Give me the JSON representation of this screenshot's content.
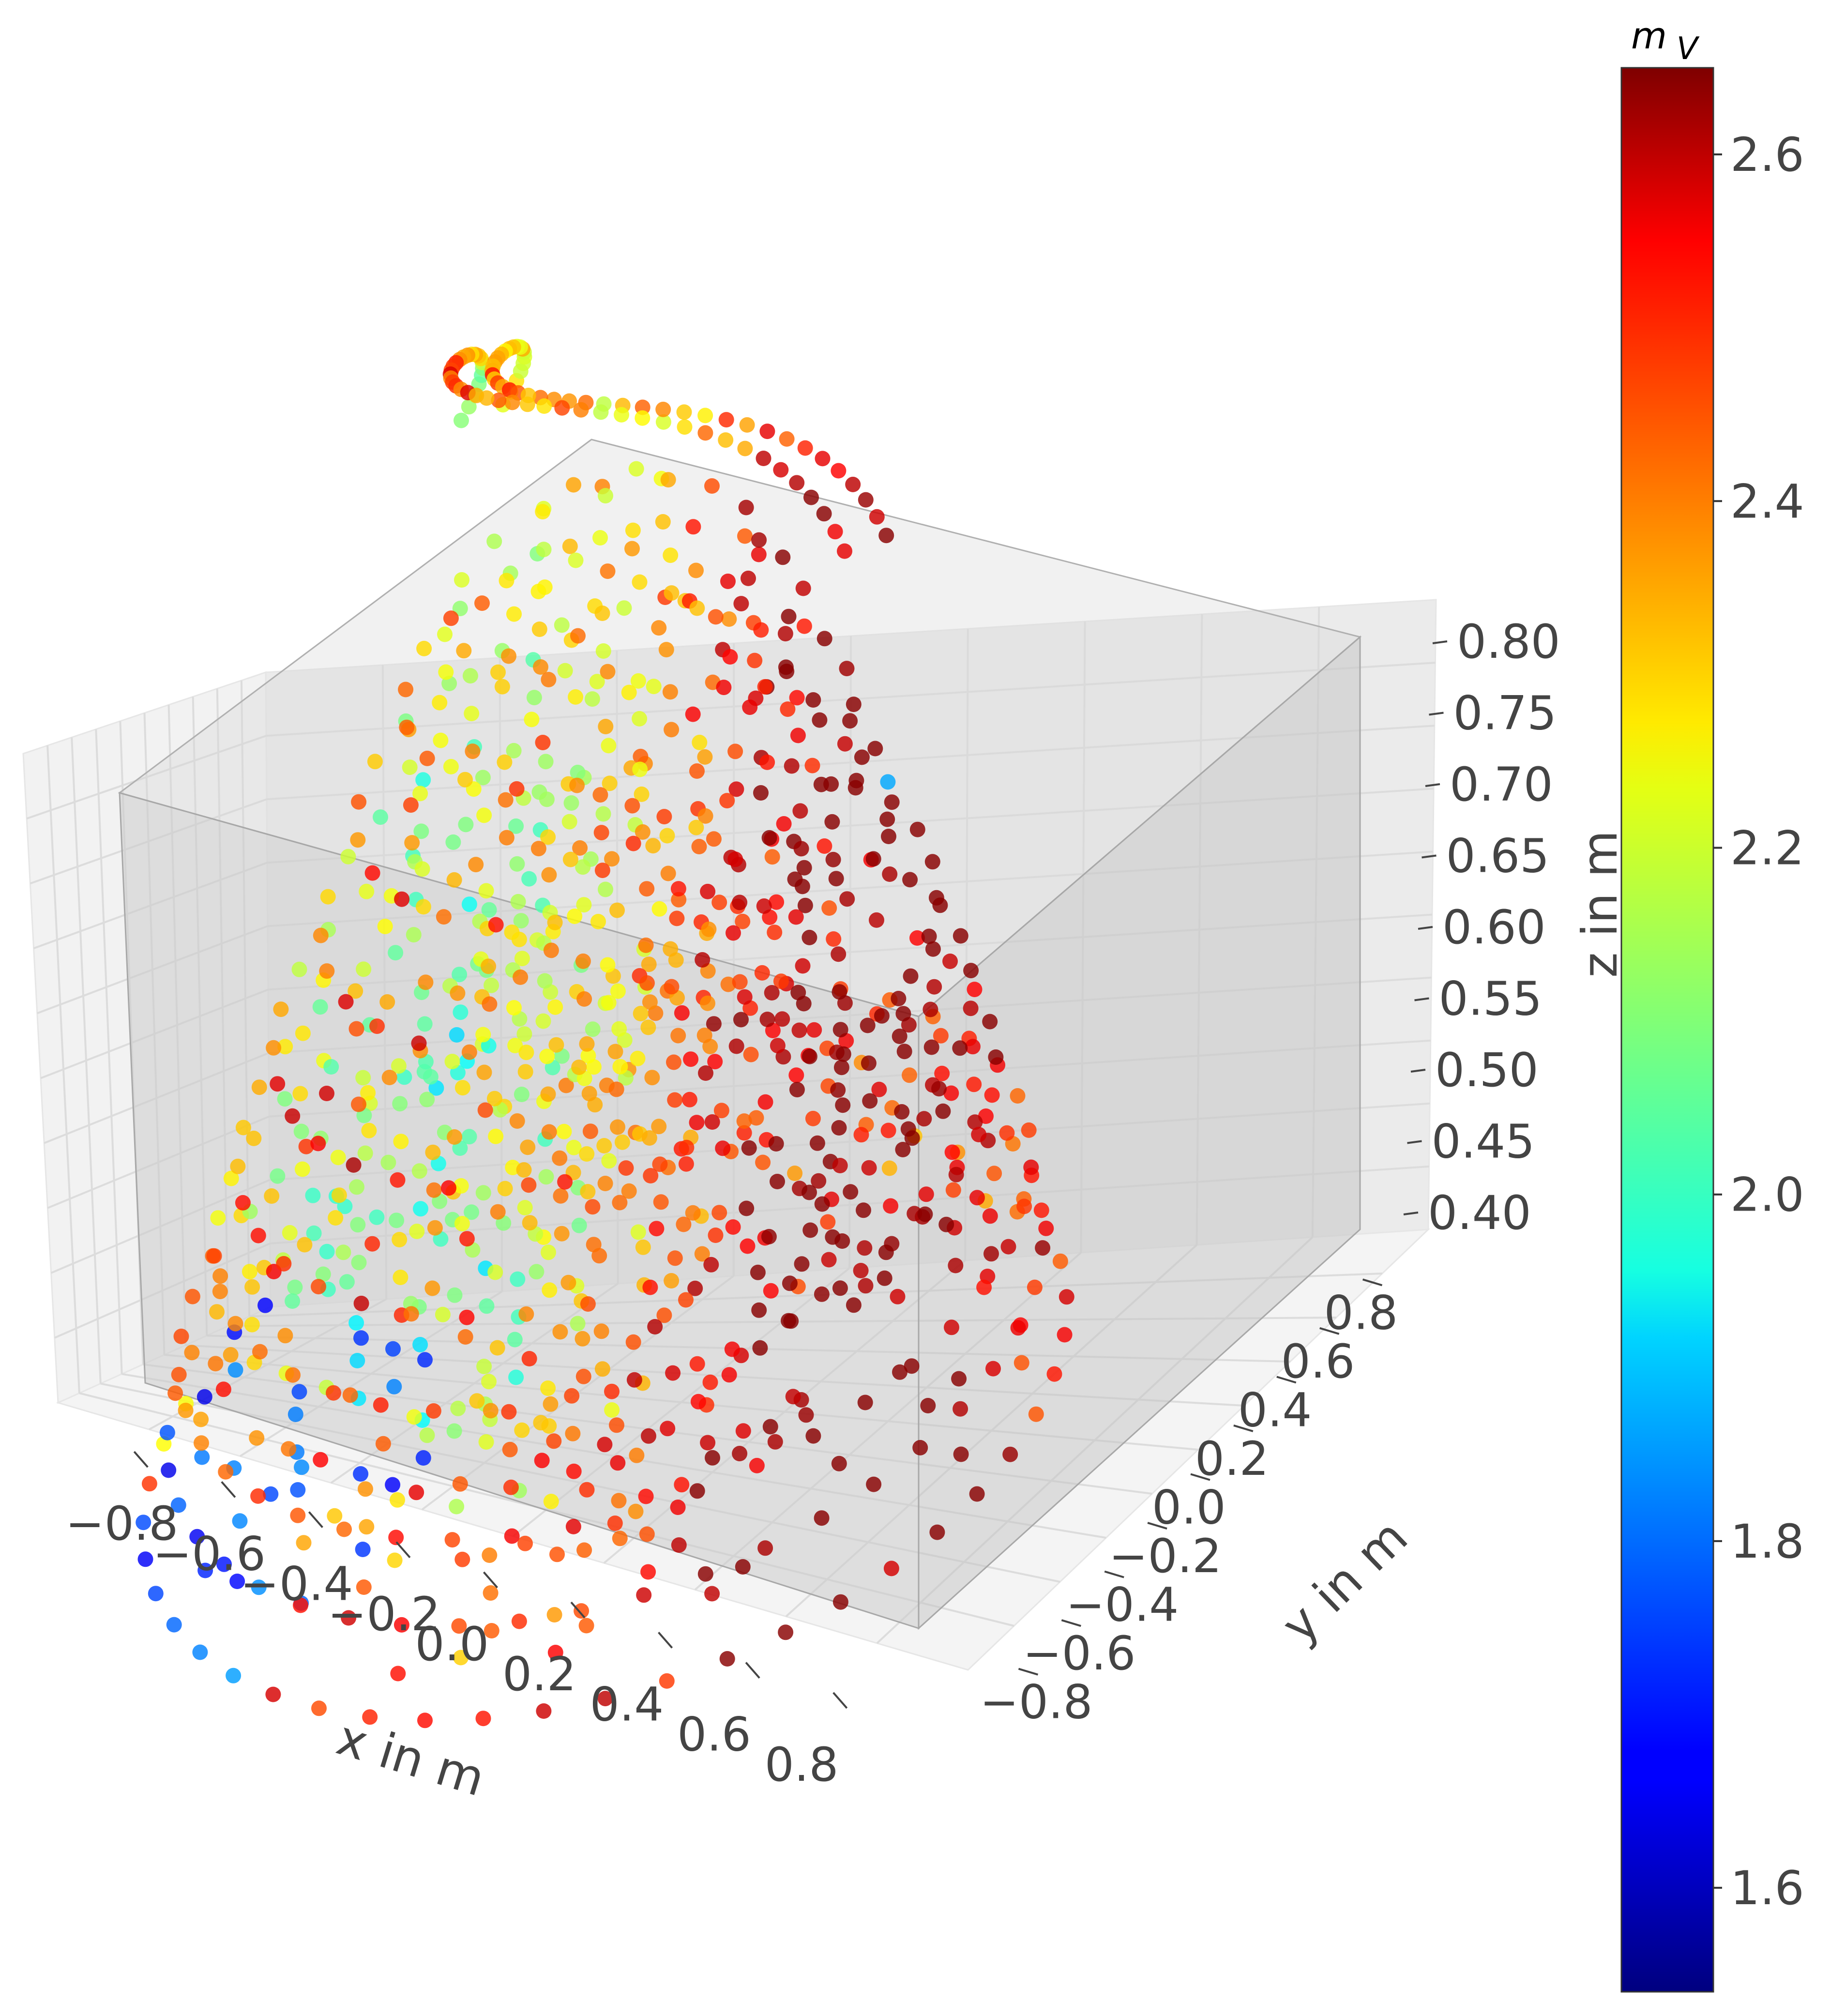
{
  "chart_data": {
    "type": "scatter",
    "projection": "3d",
    "description_of_marks": "voxel point cloud of a stepped object with handle",
    "colormap": "jet",
    "xlabel": "x in m",
    "ylabel": "y in m",
    "zlabel": "z in m",
    "xlim": [
      -0.9,
      0.9
    ],
    "ylim": [
      -0.9,
      0.9
    ],
    "zlim": [
      0.38,
      0.83
    ],
    "xticks": [
      -0.8,
      -0.6,
      -0.4,
      -0.2,
      0.0,
      0.2,
      0.4,
      0.6,
      0.8
    ],
    "yticks": [
      -0.8,
      -0.6,
      -0.4,
      -0.2,
      0.0,
      0.2,
      0.4,
      0.6,
      0.8
    ],
    "zticks": [
      0.4,
      0.45,
      0.5,
      0.55,
      0.6,
      0.65,
      0.7,
      0.75,
      0.8
    ],
    "xtick_labels": [
      "−0.8",
      "−0.6",
      "−0.4",
      "−0.2",
      "0.0",
      "0.2",
      "0.4",
      "0.6",
      "0.8"
    ],
    "ytick_labels": [
      "−0.8",
      "−0.6",
      "−0.4",
      "−0.2",
      "0.0",
      "0.2",
      "0.4",
      "0.6",
      "0.8"
    ],
    "ztick_labels": [
      "0.40",
      "0.45",
      "0.50",
      "0.55",
      "0.60",
      "0.65",
      "0.70",
      "0.75",
      "0.80"
    ],
    "grid": true,
    "colorbar": {
      "title_main": "m",
      "title_sub": "V",
      "range": [
        1.54,
        2.65
      ],
      "ticks": [
        1.6,
        1.8,
        2.0,
        2.2,
        2.4,
        2.6
      ],
      "tick_labels": [
        "1.6",
        "1.8",
        "2.0",
        "2.2",
        "2.4",
        "2.6"
      ],
      "position": "right"
    }
  }
}
